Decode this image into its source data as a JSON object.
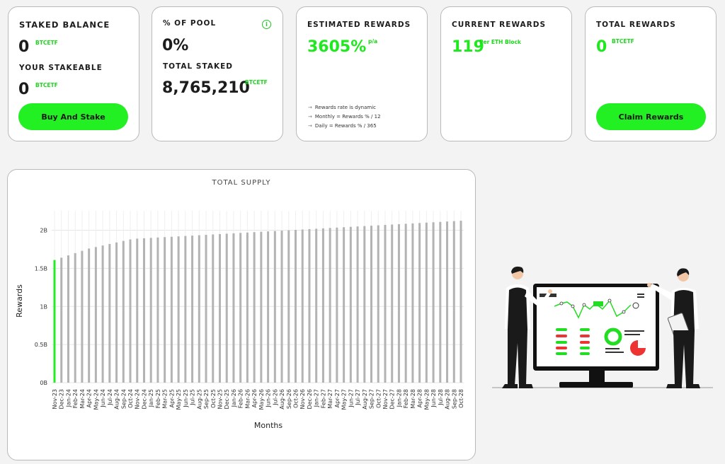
{
  "cards": {
    "staked": {
      "label": "STAKED BALANCE",
      "value": "0",
      "unit": "BTCETF",
      "stakeable_label": "YOUR STAKEABLE",
      "stakeable_value": "0",
      "stakeable_unit": "BTCETF",
      "button": "Buy And Stake"
    },
    "pool": {
      "label": "% OF POOL",
      "value": "0%",
      "info_icon": "i",
      "total_label": "TOTAL STAKED",
      "total_value": "8,765,210",
      "total_unit": "BTCETF"
    },
    "estimated": {
      "label": "ESTIMATED REWARDS",
      "value": "3605%",
      "unit": "p/a",
      "notes": [
        "Rewards rate is dynamic",
        "Monthly = Rewards % / 12",
        "Daily = Rewards % / 365"
      ]
    },
    "current": {
      "label": "CURRENT REWARDS",
      "value": "119",
      "unit": "Per ETH Block"
    },
    "total": {
      "label": "TOTAL REWARDS",
      "value": "0",
      "unit": "BTCETF",
      "button": "Claim Rewards"
    }
  },
  "chart_data": {
    "type": "bar",
    "title": "TOTAL SUPPLY",
    "xlabel": "Months",
    "ylabel": "Rewards",
    "yticks": [
      "0B",
      "0.5B",
      "1B",
      "1.5B",
      "2B"
    ],
    "ylim": [
      0,
      2.2
    ],
    "categories": [
      "Nov-23",
      "Dec-23",
      "Jan-24",
      "Feb-24",
      "Mar-24",
      "Apr-24",
      "May-24",
      "Jun-24",
      "Jul-24",
      "Aug-24",
      "Sep-24",
      "Oct-24",
      "Nov-24",
      "Dec-24",
      "Jan-25",
      "Feb-25",
      "Mar-25",
      "Apr-25",
      "May-25",
      "Jun-25",
      "Jul-25",
      "Aug-25",
      "Sep-25",
      "Oct-25",
      "Nov-25",
      "Dec-25",
      "Jan-26",
      "Feb-26",
      "Mar-26",
      "Apr-26",
      "May-26",
      "Jun-26",
      "Jul-26",
      "Aug-26",
      "Sep-26",
      "Oct-26",
      "Nov-26",
      "Dec-26",
      "Jan-27",
      "Feb-27",
      "Mar-27",
      "Apr-27",
      "May-27",
      "Jun-27",
      "Jul-27",
      "Aug-27",
      "Sep-27",
      "Oct-27",
      "Nov-27",
      "Dec-27",
      "Jan-28",
      "Feb-28",
      "Mar-28",
      "Apr-28",
      "May-28",
      "Jun-28",
      "Jul-28",
      "Aug-28",
      "Sep-28",
      "Oct-28"
    ],
    "values": [
      1.61,
      1.64,
      1.67,
      1.7,
      1.73,
      1.76,
      1.78,
      1.8,
      1.82,
      1.84,
      1.86,
      1.88,
      1.89,
      1.895,
      1.9,
      1.905,
      1.91,
      1.915,
      1.92,
      1.925,
      1.93,
      1.935,
      1.94,
      1.945,
      1.95,
      1.955,
      1.96,
      1.965,
      1.97,
      1.975,
      1.98,
      1.985,
      1.99,
      1.995,
      2.0,
      2.005,
      2.01,
      2.015,
      2.02,
      2.025,
      2.03,
      2.035,
      2.04,
      2.045,
      2.05,
      2.055,
      2.06,
      2.065,
      2.07,
      2.075,
      2.08,
      2.085,
      2.09,
      2.095,
      2.1,
      2.105,
      2.11,
      2.115,
      2.12,
      2.125
    ],
    "highlight_index": 0,
    "colors": {
      "bar": "#b3b3b3",
      "highlight": "#22ee22",
      "grid": "#e6e6e6"
    }
  },
  "illustration": {
    "name": "business-people-dashboard-illustration"
  }
}
